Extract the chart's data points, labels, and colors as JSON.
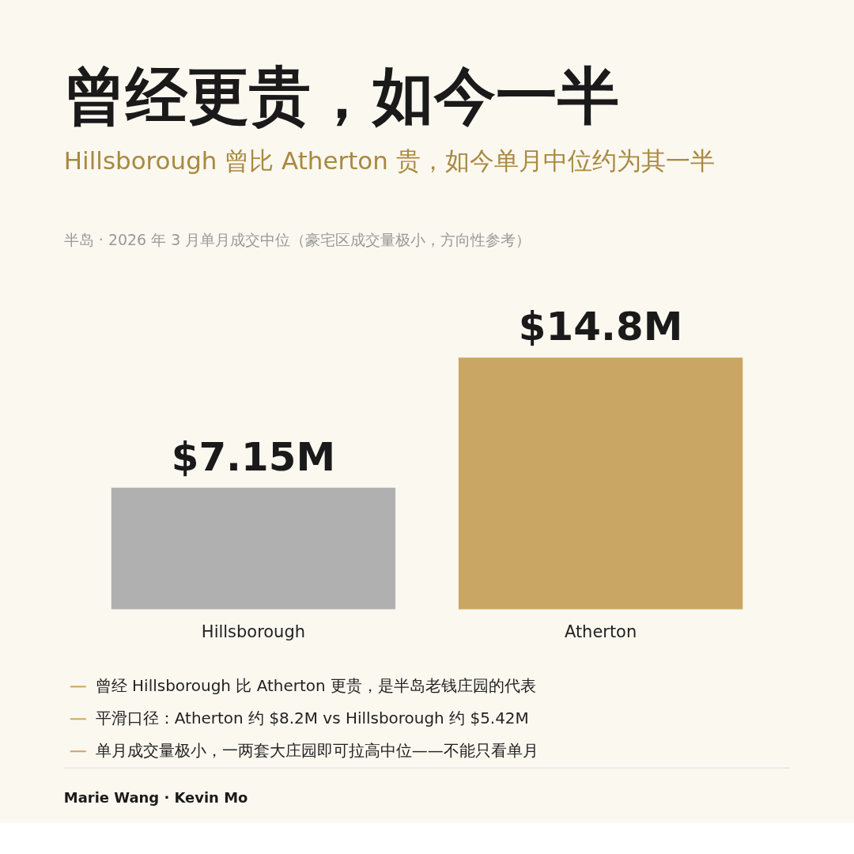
{
  "chart_data": {
    "type": "bar",
    "title": "曾经更贵，如今一半",
    "subtitle": [
      "Hillsborough 曾比 Atherton 贵，如今单月中位约为其一半",
      "半岛 · 2026 年 3 月单月成交中位（豪宅区成交量极小，方向性参考）"
    ],
    "categories": [
      "Hillsborough",
      "Atherton"
    ],
    "values": [
      7.15,
      14.8
    ],
    "colors": [
      "#b0b0b0",
      "#c9a663"
    ],
    "value_labels": [
      "$7.15M",
      "$14.8M"
    ],
    "annotations": [
      "曾经 Hillsborough 比 Atherton 更贵，是半岛老钱庄园的代表",
      "平滑口径：Atherton 约 $8.2M vs Hillsborough 约 $5.42M",
      "单月成交量极小，一两套大庄园即可拉高中位——不能只看单月",
      "Marie Wang · Kevin Mo"
    ]
  }
}
